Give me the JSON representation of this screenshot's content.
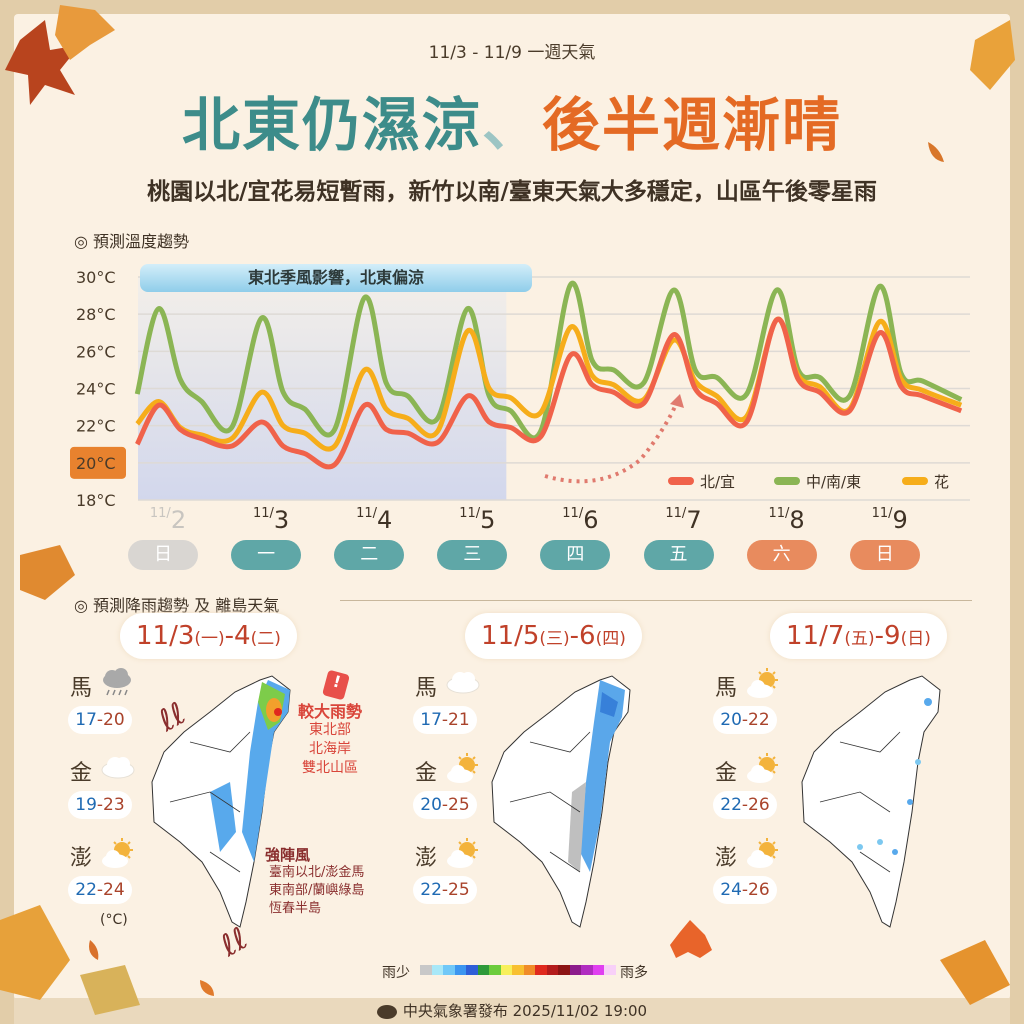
{
  "header": {
    "date_range": "11/3 - 11/9 一週天氣",
    "headline_part1": "北東仍濕涼",
    "headline_sep": "、",
    "headline_part2": "後半週漸晴",
    "summary": "桃園以北/宜花易短暫雨，新竹以南/臺東天氣大多穩定，山區午後零星雨"
  },
  "temperature_section": {
    "title": "◎ 預測溫度趨勢",
    "banner": "東北季風影響，北東偏涼"
  },
  "chart_data": {
    "type": "line",
    "ylim": [
      18,
      30
    ],
    "yticks": [
      "30°C",
      "28°C",
      "26°C",
      "24°C",
      "22°C",
      "20°C",
      "18°C"
    ],
    "highlighted_ytick": "20°C",
    "grid": true,
    "legend_position": "bottom-right",
    "shaded_period": [
      "11/2 08",
      "11/5 22"
    ],
    "x_dates": [
      {
        "date": "11/2",
        "month": "11/",
        "day": "2",
        "weekday": "日",
        "color": "#d9d6d2",
        "text_color": "#c8c5c0"
      },
      {
        "date": "11/3",
        "month": "11/",
        "day": "3",
        "weekday": "一",
        "color": "#5fa7a7"
      },
      {
        "date": "11/4",
        "month": "11/",
        "day": "4",
        "weekday": "二",
        "color": "#5fa7a7"
      },
      {
        "date": "11/5",
        "month": "11/",
        "day": "5",
        "weekday": "三",
        "color": "#5fa7a7"
      },
      {
        "date": "11/6",
        "month": "11/",
        "day": "6",
        "weekday": "四",
        "color": "#5fa7a7"
      },
      {
        "date": "11/7",
        "month": "11/",
        "day": "7",
        "weekday": "五",
        "color": "#5fa7a7"
      },
      {
        "date": "11/8",
        "month": "11/",
        "day": "8",
        "weekday": "六",
        "color": "#e88b5e"
      },
      {
        "date": "11/9",
        "month": "11/",
        "day": "9",
        "weekday": "日",
        "color": "#e88b5e"
      }
    ],
    "series": [
      {
        "name": "北/宜",
        "color": "#f0624a",
        "points": [
          [
            "11/2 08",
            21.0
          ],
          [
            "11/2 13",
            23.1
          ],
          [
            "11/2 18",
            21.8
          ],
          [
            "11/2 23",
            21.3
          ],
          [
            "11/3 06",
            20.9
          ],
          [
            "11/3 13",
            22.2
          ],
          [
            "11/3 18",
            20.9
          ],
          [
            "11/3 23",
            20.5
          ],
          [
            "11/4 06",
            19.9
          ],
          [
            "11/4 13",
            23.1
          ],
          [
            "11/4 18",
            21.8
          ],
          [
            "11/4 23",
            21.6
          ],
          [
            "11/5 06",
            21.1
          ],
          [
            "11/5 13",
            23.6
          ],
          [
            "11/5 18",
            22.2
          ],
          [
            "11/5 23",
            21.9
          ],
          [
            "11/6 06",
            21.4
          ],
          [
            "11/6 13",
            25.8
          ],
          [
            "11/6 18",
            24.2
          ],
          [
            "11/6 23",
            23.8
          ],
          [
            "11/7 06",
            23.2
          ],
          [
            "11/7 13",
            26.9
          ],
          [
            "11/7 18",
            24.0
          ],
          [
            "11/7 23",
            23.2
          ],
          [
            "11/8 06",
            22.2
          ],
          [
            "11/8 13",
            27.7
          ],
          [
            "11/8 18",
            24.5
          ],
          [
            "11/8 23",
            23.8
          ],
          [
            "11/9 06",
            22.8
          ],
          [
            "11/9 13",
            27.0
          ],
          [
            "11/9 18",
            24.1
          ],
          [
            "11/9 23",
            23.6
          ],
          [
            "11/10 08",
            22.8
          ]
        ]
      },
      {
        "name": "中/南/東",
        "color": "#8bb554",
        "points": [
          [
            "11/2 08",
            23.7
          ],
          [
            "11/2 13",
            28.3
          ],
          [
            "11/2 18",
            24.5
          ],
          [
            "11/2 23",
            23.3
          ],
          [
            "11/3 06",
            21.9
          ],
          [
            "11/3 13",
            27.8
          ],
          [
            "11/3 18",
            23.8
          ],
          [
            "11/3 23",
            22.9
          ],
          [
            "11/4 06",
            21.8
          ],
          [
            "11/4 13",
            28.9
          ],
          [
            "11/4 18",
            24.3
          ],
          [
            "11/4 23",
            23.6
          ],
          [
            "11/5 06",
            22.4
          ],
          [
            "11/5 13",
            28.3
          ],
          [
            "11/5 18",
            23.6
          ],
          [
            "11/5 23",
            22.8
          ],
          [
            "11/6 06",
            21.7
          ],
          [
            "11/6 13",
            29.6
          ],
          [
            "11/6 18",
            25.5
          ],
          [
            "11/6 23",
            25.0
          ],
          [
            "11/7 06",
            24.3
          ],
          [
            "11/7 13",
            29.3
          ],
          [
            "11/7 18",
            25.0
          ],
          [
            "11/7 23",
            24.6
          ],
          [
            "11/8 06",
            23.7
          ],
          [
            "11/8 13",
            29.3
          ],
          [
            "11/8 18",
            25.0
          ],
          [
            "11/8 23",
            24.6
          ],
          [
            "11/9 06",
            23.6
          ],
          [
            "11/9 13",
            29.5
          ],
          [
            "11/9 18",
            24.8
          ],
          [
            "11/9 23",
            24.4
          ],
          [
            "11/10 08",
            23.4
          ]
        ]
      },
      {
        "name": "花",
        "color": "#f6ad1a",
        "points": [
          [
            "11/2 08",
            22.1
          ],
          [
            "11/2 13",
            23.3
          ],
          [
            "11/2 18",
            21.9
          ],
          [
            "11/2 23",
            21.5
          ],
          [
            "11/3 06",
            21.3
          ],
          [
            "11/3 13",
            23.8
          ],
          [
            "11/3 18",
            22.0
          ],
          [
            "11/3 23",
            21.6
          ],
          [
            "11/4 06",
            20.9
          ],
          [
            "11/4 13",
            25.0
          ],
          [
            "11/4 18",
            22.9
          ],
          [
            "11/4 23",
            22.4
          ],
          [
            "11/5 06",
            21.7
          ],
          [
            "11/5 13",
            27.1
          ],
          [
            "11/5 18",
            24.0
          ],
          [
            "11/5 23",
            23.5
          ],
          [
            "11/6 06",
            22.7
          ],
          [
            "11/6 13",
            27.3
          ],
          [
            "11/6 18",
            24.7
          ],
          [
            "11/6 23",
            24.2
          ],
          [
            "11/7 06",
            23.4
          ],
          [
            "11/7 13",
            26.6
          ],
          [
            "11/7 18",
            24.4
          ],
          [
            "11/7 23",
            23.6
          ],
          [
            "11/8 06",
            22.5
          ],
          [
            "11/8 13",
            27.7
          ],
          [
            "11/8 18",
            24.7
          ],
          [
            "11/8 23",
            24.1
          ],
          [
            "11/9 06",
            22.9
          ],
          [
            "11/9 13",
            27.6
          ],
          [
            "11/9 18",
            24.5
          ],
          [
            "11/9 23",
            23.9
          ],
          [
            "11/10 08",
            23.1
          ]
        ]
      }
    ]
  },
  "rain_section": {
    "title": "◎ 預測降雨趨勢 及 離島天氣",
    "unit": "(°C)"
  },
  "panels": [
    {
      "date_main": "11/3",
      "wd1": "(一)",
      "date_mid": "-4",
      "wd2": "(二)",
      "islands": [
        {
          "name": "馬",
          "icon": "rain-cloud",
          "low": "17",
          "high": "-20"
        },
        {
          "name": "金",
          "icon": "cloud",
          "low": "19",
          "high": "-23"
        },
        {
          "name": "澎",
          "icon": "partly-sunny",
          "low": "22",
          "high": "-24"
        }
      ],
      "alert_title": "較大雨勢",
      "alert_lines": [
        "東北部",
        "北海岸",
        "雙北山區"
      ],
      "wind_title": "強陣風",
      "wind_lines": [
        "臺南以北/澎金馬",
        "東南部/蘭嶼綠島",
        "恆春半島"
      ]
    },
    {
      "date_main": "11/5",
      "wd1": "(三)",
      "date_mid": "-6",
      "wd2": "(四)",
      "islands": [
        {
          "name": "馬",
          "icon": "cloud",
          "low": "17",
          "high": "-21"
        },
        {
          "name": "金",
          "icon": "partly-sunny",
          "low": "20",
          "high": "-25"
        },
        {
          "name": "澎",
          "icon": "partly-sunny",
          "low": "22",
          "high": "-25"
        }
      ]
    },
    {
      "date_main": "11/7",
      "wd1": "(五)",
      "date_mid": "-9",
      "wd2": "(日)",
      "islands": [
        {
          "name": "馬",
          "icon": "partly-sunny",
          "low": "20",
          "high": "-22"
        },
        {
          "name": "金",
          "icon": "partly-sunny",
          "low": "22",
          "high": "-26"
        },
        {
          "name": "澎",
          "icon": "partly-sunny",
          "low": "24",
          "high": "-26"
        }
      ]
    }
  ],
  "rain_legend": {
    "less": "雨少",
    "more": "雨多",
    "colors": [
      "#c8c8c8",
      "#a8e8f8",
      "#70c8f8",
      "#3c96f0",
      "#2f5fd8",
      "#2e9a3a",
      "#6ccc3c",
      "#f8f05a",
      "#f8c030",
      "#f08c28",
      "#e02a1e",
      "#b41c1c",
      "#8c1414",
      "#8c1c8c",
      "#b02cc0",
      "#e040f0",
      "#f8d0f8"
    ]
  },
  "footer": {
    "publisher": "中央氣象署發布 2025/11/02  19:00"
  }
}
